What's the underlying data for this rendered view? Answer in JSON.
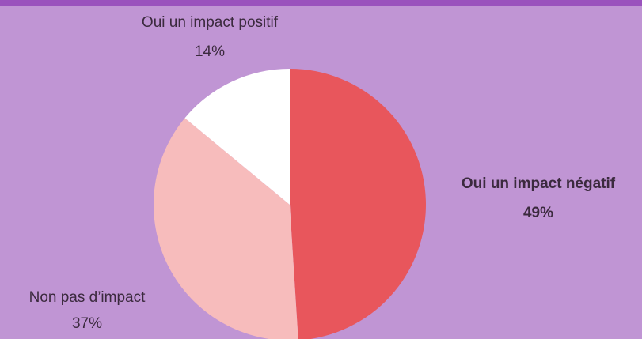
{
  "chart_data": {
    "type": "pie",
    "categories": [
      "Oui un impact négatif",
      "Non pas d’impact",
      "Oui un impact positif"
    ],
    "values": [
      49,
      37,
      14
    ],
    "value_labels": [
      "49%",
      "37%",
      "14%"
    ],
    "colors": [
      "#e8565c",
      "#f7bcbc",
      "#ffffff"
    ]
  }
}
